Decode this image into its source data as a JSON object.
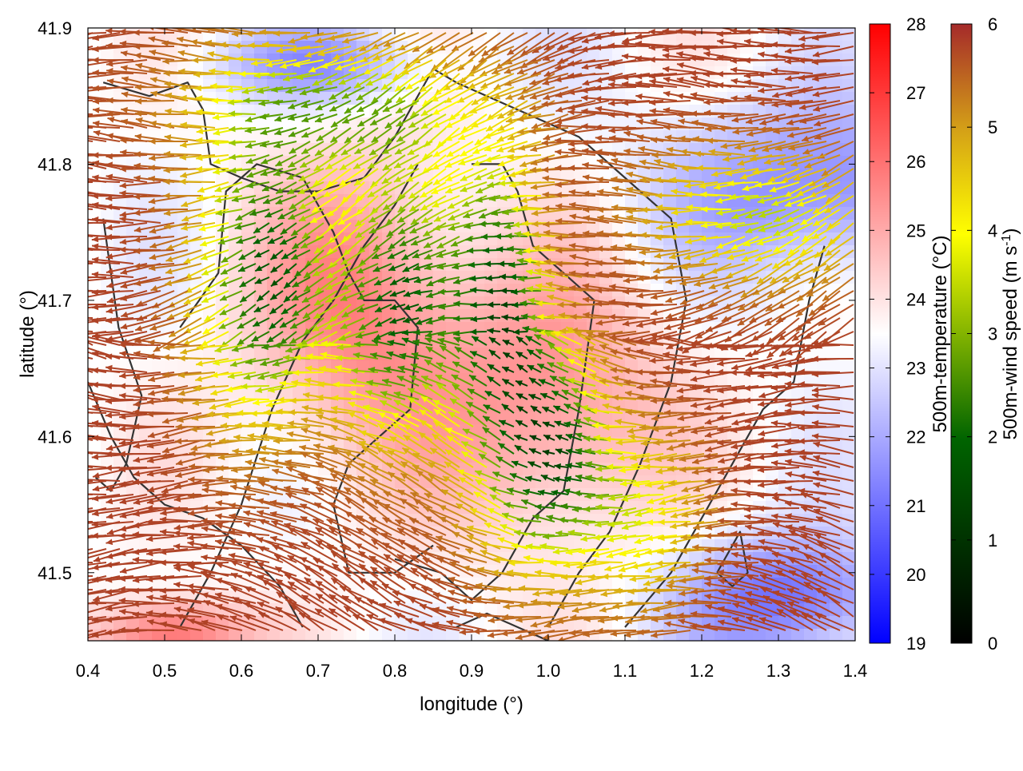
{
  "chart_data": {
    "type": "heatmap",
    "title": "",
    "xlabel": "longitude (°)",
    "ylabel": "latitude (°)",
    "xlim": [
      0.4,
      1.4
    ],
    "ylim": [
      41.45,
      41.9
    ],
    "x_ticks": [
      "0.4",
      "0.5",
      "0.6",
      "0.7",
      "0.8",
      "0.9",
      "1.0",
      "1.1",
      "1.2",
      "1.3",
      "1.4"
    ],
    "y_ticks": [
      "41.5",
      "41.6",
      "41.7",
      "41.8",
      "41.9"
    ],
    "grid": false,
    "overlays": [
      "wind vector arrows colored by speed",
      "dark contour lines"
    ],
    "colorbars": [
      {
        "name": "500m-temperature",
        "label": "500m-temperature (°C)",
        "range": [
          19,
          28
        ],
        "ticks": [
          "19",
          "20",
          "21",
          "22",
          "23",
          "24",
          "25",
          "26",
          "27",
          "28"
        ],
        "colors": [
          "#0000ff",
          "#ffffff",
          "#ff0000"
        ]
      },
      {
        "name": "500m-wind speed",
        "label": "500m-wind speed (m s",
        "label_sup": "-1",
        "label_tail": ")",
        "range": [
          0,
          6
        ],
        "ticks": [
          "0",
          "1",
          "2",
          "3",
          "4",
          "5",
          "6"
        ],
        "colors": [
          "#000000",
          "#006400",
          "#ffff00",
          "#ff9900",
          "#a52a2a"
        ]
      }
    ]
  }
}
